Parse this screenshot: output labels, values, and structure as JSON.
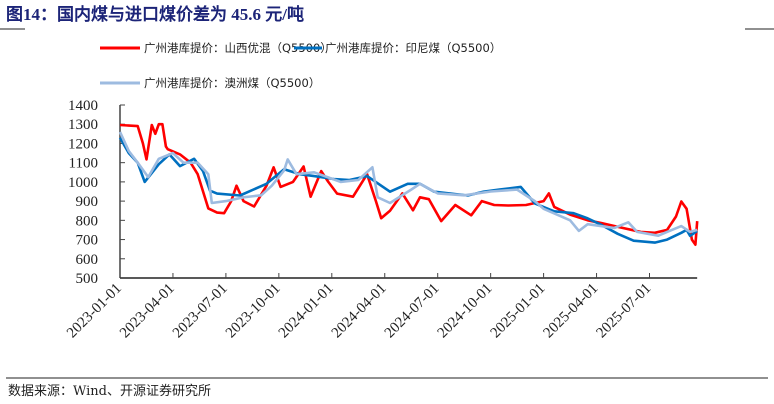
{
  "chart_data": {
    "type": "line",
    "title": "图14：国内煤与进口煤价差为 45.6 元/吨",
    "source": "数据来源：Wind、开源证券研究所",
    "xlabel": "",
    "ylabel": "",
    "ylim": [
      500,
      1400
    ],
    "yticks": [
      500,
      600,
      700,
      800,
      900,
      1000,
      1100,
      1200,
      1300,
      1400
    ],
    "x_unit": "months since 2023-01-01",
    "xlim": [
      0,
      32.7
    ],
    "xticks": [
      {
        "month": 0,
        "label": "2023-01-01"
      },
      {
        "month": 3,
        "label": "2023-04-01"
      },
      {
        "month": 6,
        "label": "2023-07-01"
      },
      {
        "month": 9,
        "label": "2023-10-01"
      },
      {
        "month": 12,
        "label": "2024-01-01"
      },
      {
        "month": 15,
        "label": "2024-04-01"
      },
      {
        "month": 18,
        "label": "2024-07-01"
      },
      {
        "month": 21,
        "label": "2024-10-01"
      },
      {
        "month": 24,
        "label": "2025-01-01"
      },
      {
        "month": 27,
        "label": "2025-04-01"
      },
      {
        "month": 30,
        "label": "2025-07-01"
      }
    ],
    "legend_placement": "top",
    "series": [
      {
        "name": "广州港库提价：山西优混（Q5500）",
        "color": "#ff0000",
        "x": [
          0,
          1,
          1.3,
          1.5,
          1.8,
          2.0,
          2.2,
          2.4,
          2.6,
          2.7,
          3.4,
          4.0,
          4.4,
          5.0,
          5.5,
          5.9,
          6.3,
          6.6,
          7.0,
          7.6,
          8.3,
          8.7,
          9.1,
          9.8,
          10.4,
          10.8,
          11.4,
          11.8,
          12.3,
          13.2,
          14.0,
          14.5,
          14.8,
          15.3,
          16.0,
          16.6,
          17.0,
          17.5,
          18.2,
          19.0,
          19.9,
          20.5,
          21.2,
          22.0,
          23.0,
          24.0,
          24.3,
          24.6,
          25.5,
          26.5,
          27.3,
          28.5,
          29.5,
          30.3,
          31.0,
          31.5,
          31.8,
          32.1,
          32.4,
          32.6,
          32.7
        ],
        "values": [
          1296,
          1290,
          1200,
          1117,
          1296,
          1250,
          1300,
          1300,
          1184,
          1170,
          1143,
          1100,
          1040,
          862,
          840,
          837,
          900,
          980,
          900,
          872,
          980,
          1076,
          974,
          1000,
          1080,
          923,
          1056,
          1000,
          939,
          923,
          1040,
          900,
          811,
          850,
          940,
          852,
          920,
          910,
          796,
          880,
          826,
          900,
          880,
          877,
          880,
          900,
          940,
          870,
          830,
          800,
          785,
          760,
          740,
          735,
          750,
          820,
          898,
          860,
          700,
          673,
          796
        ]
      },
      {
        "name": "广州港库提价：印尼煤（Q5500）",
        "color": "#0070c0",
        "x": [
          0,
          0.5,
          1.0,
          1.4,
          2.2,
          2.8,
          3.4,
          4.2,
          4.7,
          5.1,
          5.5,
          6.8,
          8.3,
          9.3,
          10.2,
          11.0,
          12.1,
          13.0,
          14.0,
          14.8,
          15.3,
          16.3,
          17.0,
          17.8,
          19.7,
          20.6,
          21.5,
          22.7,
          23.5,
          24.6,
          25.7,
          26.5,
          27.3,
          28.2,
          29.1,
          30.3,
          31.0,
          31.8,
          32.1,
          32.3,
          32.7
        ],
        "values": [
          1230,
          1150,
          1100,
          1000,
          1092,
          1143,
          1082,
          1120,
          1056,
          954,
          939,
          929,
          990,
          1066,
          1040,
          1030,
          1015,
          1010,
          1030,
          980,
          949,
          990,
          990,
          949,
          929,
          949,
          960,
          974,
          888,
          847,
          837,
          810,
          775,
          730,
          694,
          684,
          700,
          735,
          750,
          719,
          745
        ]
      },
      {
        "name": "广州港库提价：澳洲煤（Q5500）",
        "color": "#9dbbe0",
        "x": [
          0,
          0.5,
          1.0,
          1.6,
          2.2,
          3.0,
          3.6,
          4.4,
          5.0,
          5.2,
          6.0,
          7.0,
          8.0,
          8.6,
          9.3,
          9.5,
          10.0,
          11.0,
          12.5,
          13.5,
          14.3,
          14.6,
          15.3,
          16.5,
          17.0,
          18.0,
          19.5,
          21.0,
          22.5,
          23.5,
          24.0,
          25.5,
          26.0,
          26.5,
          28.0,
          28.8,
          29.3,
          30.5,
          31.0,
          31.8,
          32.3,
          32.7
        ],
        "values": [
          1260,
          1160,
          1100,
          1025,
          1120,
          1150,
          1100,
          1100,
          1040,
          890,
          900,
          920,
          930,
          980,
          1060,
          1117,
          1040,
          1050,
          1000,
          1010,
          1076,
          920,
          890,
          960,
          990,
          940,
          930,
          950,
          960,
          900,
          860,
          800,
          745,
          780,
          760,
          790,
          740,
          720,
          740,
          770,
          740,
          750
        ]
      }
    ]
  }
}
